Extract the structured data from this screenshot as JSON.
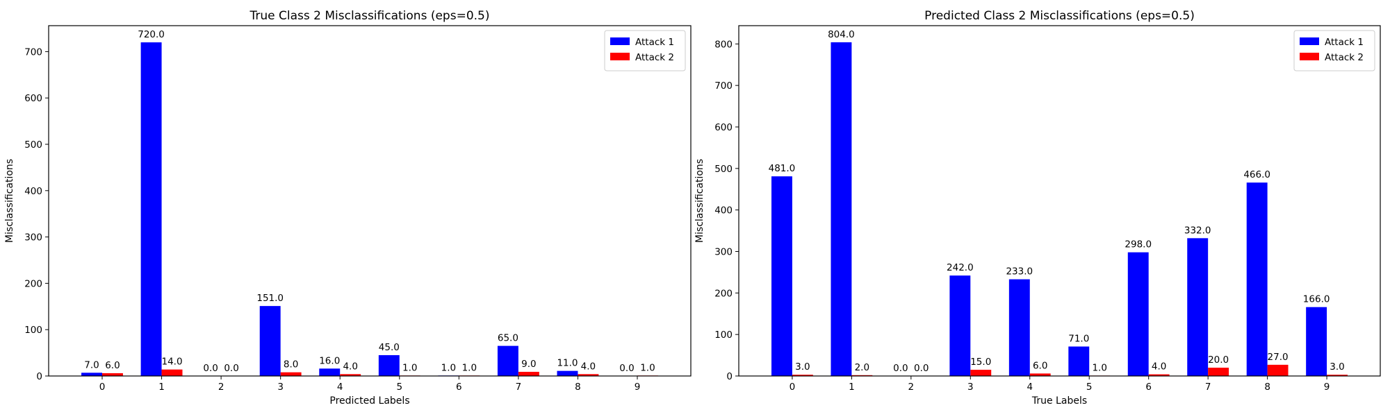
{
  "chart_data": [
    {
      "type": "bar",
      "title": "True Class 2 Misclassifications (eps=0.5)",
      "xlabel": "Predicted Labels",
      "ylabel": "Misclassifications",
      "categories": [
        "0",
        "1",
        "2",
        "3",
        "4",
        "5",
        "6",
        "7",
        "8",
        "9"
      ],
      "series": [
        {
          "name": "Attack 1",
          "color": "#0000ff",
          "values": [
            7.0,
            720.0,
            0.0,
            151.0,
            16.0,
            45.0,
            1.0,
            65.0,
            11.0,
            0.0
          ],
          "value_labels": [
            "7.0",
            "720.0",
            "0.0",
            "151.0",
            "16.0",
            "45.0",
            "1.0",
            "65.0",
            "11.0",
            "0.0"
          ]
        },
        {
          "name": "Attack 2",
          "color": "#ff0000",
          "values": [
            6.0,
            14.0,
            0.0,
            8.0,
            4.0,
            1.0,
            1.0,
            9.0,
            4.0,
            1.0
          ],
          "value_labels": [
            "6.0",
            "14.0",
            "0.0",
            "8.0",
            "4.0",
            "1.0",
            "1.0",
            "9.0",
            "4.0",
            "1.0"
          ]
        }
      ],
      "ylim": [
        0,
        756
      ],
      "yticks": [
        0,
        100,
        200,
        300,
        400,
        500,
        600,
        700
      ],
      "ytick_labels": [
        "0",
        "100",
        "200",
        "300",
        "400",
        "500",
        "600",
        "700"
      ],
      "grid": false,
      "legend_position": "top-right"
    },
    {
      "type": "bar",
      "title": "Predicted Class 2 Misclassifications (eps=0.5)",
      "xlabel": "True Labels",
      "ylabel": "Misclassifications",
      "categories": [
        "0",
        "1",
        "2",
        "3",
        "4",
        "5",
        "6",
        "7",
        "8",
        "9"
      ],
      "series": [
        {
          "name": "Attack 1",
          "color": "#0000ff",
          "values": [
            481.0,
            804.0,
            0.0,
            242.0,
            233.0,
            71.0,
            298.0,
            332.0,
            466.0,
            166.0
          ],
          "value_labels": [
            "481.0",
            "804.0",
            "0.0",
            "242.0",
            "233.0",
            "71.0",
            "298.0",
            "332.0",
            "466.0",
            "166.0"
          ]
        },
        {
          "name": "Attack 2",
          "color": "#ff0000",
          "values": [
            3.0,
            2.0,
            0.0,
            15.0,
            6.0,
            1.0,
            4.0,
            20.0,
            27.0,
            3.0
          ],
          "value_labels": [
            "3.0",
            "2.0",
            "0.0",
            "15.0",
            "6.0",
            "1.0",
            "4.0",
            "20.0",
            "27.0",
            "3.0"
          ]
        }
      ],
      "ylim": [
        0,
        844
      ],
      "yticks": [
        0,
        100,
        200,
        300,
        400,
        500,
        600,
        700,
        800
      ],
      "ytick_labels": [
        "0",
        "100",
        "200",
        "300",
        "400",
        "500",
        "600",
        "700",
        "800"
      ],
      "grid": false,
      "legend_position": "top-right"
    }
  ]
}
